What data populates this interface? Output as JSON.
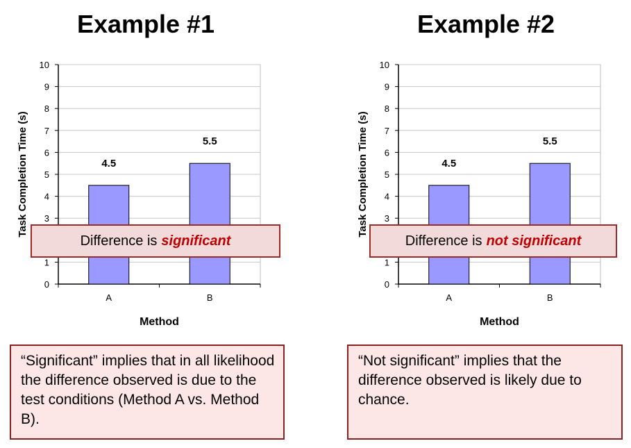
{
  "examples": [
    {
      "title": "Example #1",
      "banner_prefix": "Difference is",
      "banner_emphasis": "significant",
      "note": "“Significant” implies that in all likelihood the difference observed is due to the test conditions (Method A vs. Method B)."
    },
    {
      "title": "Example #2",
      "banner_prefix": "Difference is",
      "banner_emphasis": "not significant",
      "note": "“Not significant” implies that the difference observed is likely due to chance."
    }
  ],
  "chart_data": [
    {
      "type": "bar",
      "categories": [
        "A",
        "B"
      ],
      "values": [
        4.5,
        5.5
      ],
      "data_labels": [
        "4.5",
        "5.5"
      ],
      "title": "",
      "xlabel": "Method",
      "ylabel": "Task Completion Time (s)",
      "ylim": [
        0,
        10
      ],
      "yticks": [
        0,
        1,
        2,
        3,
        4,
        5,
        6,
        7,
        8,
        9,
        10
      ],
      "grid": true,
      "bar_color": "#9999ff"
    },
    {
      "type": "bar",
      "categories": [
        "A",
        "B"
      ],
      "values": [
        4.5,
        5.5
      ],
      "data_labels": [
        "4.5",
        "5.5"
      ],
      "title": "",
      "xlabel": "Method",
      "ylabel": "Task Completion Time (s)",
      "ylim": [
        0,
        10
      ],
      "yticks": [
        0,
        1,
        2,
        3,
        4,
        5,
        6,
        7,
        8,
        9,
        10
      ],
      "grid": true,
      "bar_color": "#9999ff"
    }
  ],
  "colors": {
    "emphasis": "#c00000",
    "banner_bg": "#f3dada",
    "banner_border": "#9a2b2b",
    "note_bg": "#fde6e6",
    "note_border": "#8b2020"
  }
}
